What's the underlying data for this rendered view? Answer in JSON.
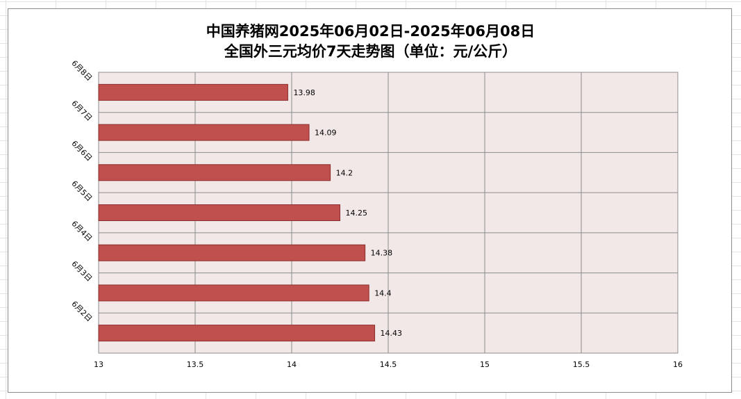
{
  "chart_data": {
    "type": "bar",
    "orientation": "horizontal",
    "title_line_1": "中国养猪网2025年06月02日-2025年06月08日",
    "title_line_2": "全国外三元均价7天走势图（单位：元/公斤）",
    "categories": [
      "6月8日",
      "6月7日",
      "6月6日",
      "6月5日",
      "6月4日",
      "6月3日",
      "6月2日"
    ],
    "values": [
      13.98,
      14.09,
      14.2,
      14.25,
      14.38,
      14.4,
      14.43
    ],
    "xlim": [
      13,
      16
    ],
    "x_ticks": [
      "13",
      "13.5",
      "14",
      "14.5",
      "15",
      "15.5",
      "16"
    ],
    "grid": true,
    "legend": "none",
    "bar_color": "#c0504d",
    "bar_border_color": "#8b2e2c",
    "plot_background": "#f2e8e8",
    "gridline_color": "#8c8c8c"
  }
}
